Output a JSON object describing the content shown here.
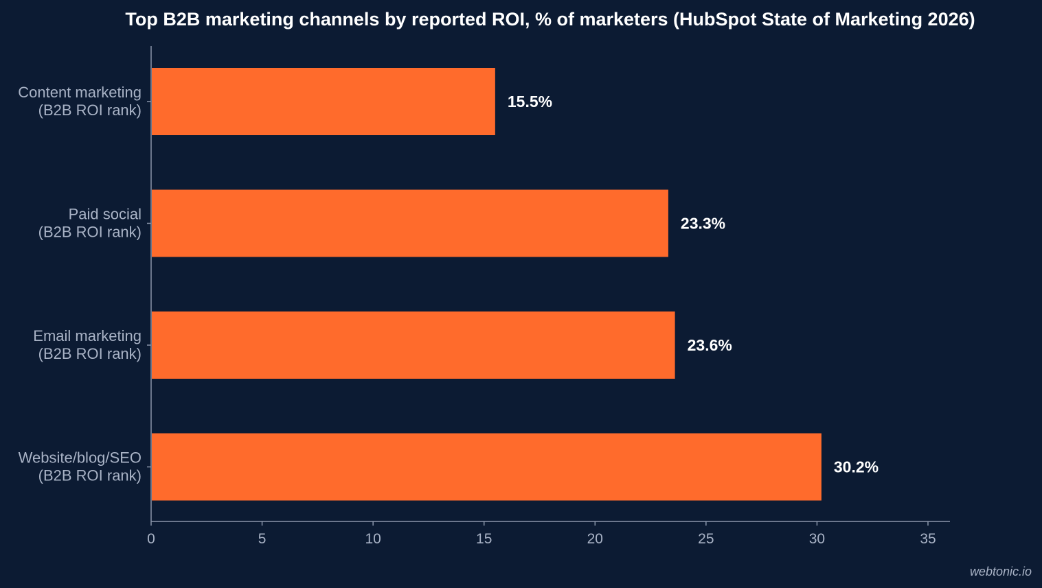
{
  "chart_data": {
    "type": "bar",
    "orientation": "horizontal",
    "title": "Top B2B marketing channels by reported ROI, % of marketers (HubSpot State of Marketing 2026)",
    "xlabel": "",
    "ylabel": "",
    "categories": [
      [
        "Content marketing",
        "(B2B ROI rank)"
      ],
      [
        "Paid social",
        "(B2B ROI rank)"
      ],
      [
        "Email marketing",
        "(B2B ROI rank)"
      ],
      [
        "Website/blog/SEO",
        "(B2B ROI rank)"
      ]
    ],
    "values": [
      15.5,
      23.3,
      23.6,
      30.2
    ],
    "value_labels": [
      "15.5%",
      "23.3%",
      "23.6%",
      "30.2%"
    ],
    "xlim": [
      0,
      36
    ],
    "xticks": [
      0,
      5,
      10,
      15,
      20,
      25,
      30,
      35
    ],
    "xtick_labels": [
      "0",
      "5",
      "10",
      "15",
      "20",
      "25",
      "30",
      "35"
    ],
    "grid": false,
    "legend": "none",
    "colors": {
      "bar": "#ff6b2c",
      "background": "#0c1b33",
      "axis": "#8b96ab",
      "label_text": "#a9b3c6",
      "value_text": "#ffffff"
    }
  },
  "watermark": "webtonic.io"
}
